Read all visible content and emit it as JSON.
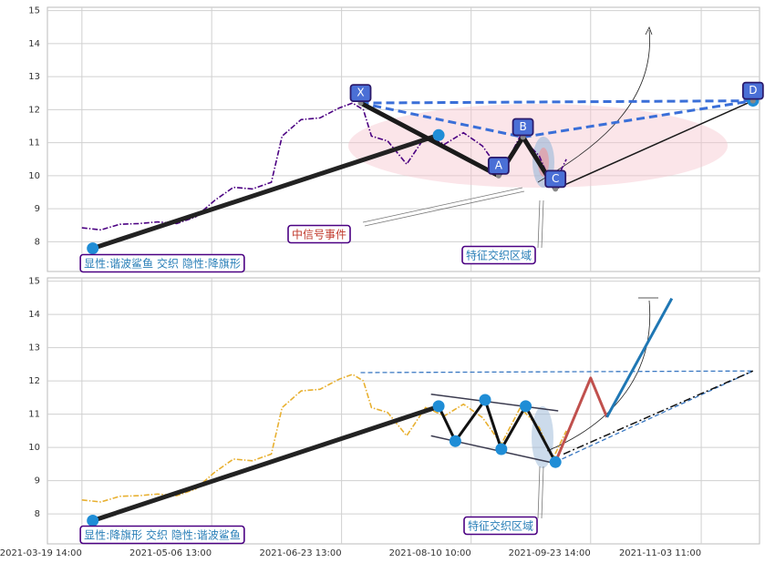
{
  "x_axis": {
    "xlim": [
      "2021-03-06 20:00",
      "2021-11-25 00:00"
    ],
    "xticks": [
      "2021-03-19 14:00",
      "2021-05-06 13:00",
      "2021-06-23 13:00",
      "2021-08-10 10:00",
      "2021-09-23 14:00",
      "2021-11-03 11:00"
    ]
  },
  "chart_data": [
    {
      "type": "line",
      "color": "#4b0082",
      "ylim": [
        7.1,
        15.1
      ],
      "yticks": [
        8,
        9,
        10,
        11,
        12,
        13,
        14,
        15
      ],
      "grid": true,
      "x": [
        "2021-03-19 14:00",
        "2021-03-26 14:00",
        "2021-04-02 14:00",
        "2021-04-09 14:00",
        "2021-04-16 14:00",
        "2021-04-23 14:00",
        "2021-04-30 14:00",
        "2021-05-07 14:00",
        "2021-05-14 14:00",
        "2021-05-21 14:00",
        "2021-05-28 14:00",
        "2021-06-01 14:00",
        "2021-06-08 14:00",
        "2021-06-15 14:00",
        "2021-06-22 14:00",
        "2021-06-27 14:00",
        "2021-07-01 14:00",
        "2021-07-04 14:00",
        "2021-07-10 14:00",
        "2021-07-17 14:00",
        "2021-07-24 14:00",
        "2021-07-31 14:00",
        "2021-08-07 14:00",
        "2021-08-14 14:00",
        "2021-08-21 14:00",
        "2021-08-28 14:00",
        "2021-09-04 14:00",
        "2021-09-09 14:00",
        "2021-09-14 14:00"
      ],
      "values": [
        8.42,
        8.36,
        8.53,
        8.55,
        8.6,
        8.55,
        8.75,
        9.25,
        9.65,
        9.6,
        9.8,
        11.2,
        11.7,
        11.75,
        12.05,
        12.2,
        12.0,
        11.2,
        11.05,
        10.35,
        11.2,
        10.95,
        11.3,
        10.9,
        10.1,
        11.2,
        10.6,
        9.65,
        10.5
      ],
      "overlays": [
        {
          "x": [
            "2021-03-23 14:00",
            "2021-07-29 10:00"
          ],
          "y": [
            7.8,
            11.23
          ],
          "color": "#222222",
          "style": "thick"
        },
        {
          "x": [
            "2021-06-30 14:00",
            "2021-08-29 14:00",
            "2021-11-22 14:00"
          ],
          "y": [
            12.2,
            11.17,
            12.27
          ],
          "color": "#3a6fd8",
          "style": "dashed"
        },
        {
          "x": [
            "2021-06-30 14:00",
            "2021-11-22 14:00"
          ],
          "y": [
            12.2,
            12.27
          ],
          "color": "#3a6fd8",
          "style": "dashed"
        },
        {
          "x": [
            "2021-06-30 14:00",
            "2021-08-20 14:00",
            "2021-08-29 14:00",
            "2021-09-10 14:00"
          ],
          "y": [
            12.2,
            10.0,
            11.17,
            9.6
          ],
          "color": "#1a1a1a",
          "style": "thick"
        },
        {
          "x": [
            "2021-09-10 14:00",
            "2021-11-22 14:00"
          ],
          "y": [
            9.6,
            12.27
          ],
          "color": "#1a1a1a",
          "style": "thin"
        }
      ],
      "markers": {
        "x": [
          "2021-03-23 14:00",
          "2021-07-29 10:00",
          "2021-11-22 14:00"
        ],
        "y": [
          7.8,
          11.23,
          12.27
        ],
        "color": "#1f8dd6"
      },
      "points": [
        {
          "label": "X",
          "x": "2021-06-30 14:00",
          "y": 12.2
        },
        {
          "label": "A",
          "x": "2021-08-20 14:00",
          "y": 10.0
        },
        {
          "label": "B",
          "x": "2021-08-29 14:00",
          "y": 11.17
        },
        {
          "label": "C",
          "x": "2021-09-10 14:00",
          "y": 9.6
        },
        {
          "label": "D",
          "x": "2021-11-22 14:00",
          "y": 12.27
        }
      ],
      "annotations": [
        "中信号事件",
        "特征交织区域",
        "显性:谐波鲨鱼 交织 隐性:降旗形"
      ]
    },
    {
      "type": "line",
      "color": "#e8b030",
      "ylim": [
        7.1,
        15.1
      ],
      "yticks": [
        8,
        9,
        10,
        11,
        12,
        13,
        14,
        15
      ],
      "grid": true,
      "x": [
        "2021-03-19 14:00",
        "2021-03-26 14:00",
        "2021-04-02 14:00",
        "2021-04-09 14:00",
        "2021-04-16 14:00",
        "2021-04-23 14:00",
        "2021-04-30 14:00",
        "2021-05-07 14:00",
        "2021-05-14 14:00",
        "2021-05-21 14:00",
        "2021-05-28 14:00",
        "2021-06-01 14:00",
        "2021-06-08 14:00",
        "2021-06-15 14:00",
        "2021-06-22 14:00",
        "2021-06-27 14:00",
        "2021-07-01 14:00",
        "2021-07-04 14:00",
        "2021-07-10 14:00",
        "2021-07-17 14:00",
        "2021-07-24 14:00",
        "2021-07-31 14:00",
        "2021-08-07 14:00",
        "2021-08-14 14:00",
        "2021-08-21 14:00",
        "2021-08-28 14:00",
        "2021-09-04 14:00",
        "2021-09-09 14:00",
        "2021-09-14 14:00"
      ],
      "values": [
        8.42,
        8.36,
        8.53,
        8.55,
        8.6,
        8.55,
        8.75,
        9.25,
        9.65,
        9.6,
        9.8,
        11.2,
        11.7,
        11.75,
        12.05,
        12.2,
        12.0,
        11.2,
        11.05,
        10.35,
        11.2,
        10.95,
        11.3,
        10.9,
        10.1,
        11.2,
        10.6,
        9.65,
        10.5
      ],
      "overlays": [
        {
          "x": [
            "2021-03-23 14:00",
            "2021-07-29 10:00"
          ],
          "y": [
            7.8,
            11.23
          ],
          "color": "#222222",
          "style": "thick"
        },
        {
          "x": [
            "2021-06-30 14:00",
            "2021-11-22 14:00"
          ],
          "y": [
            12.25,
            12.3
          ],
          "color": "#3a78c2",
          "style": "thindash"
        },
        {
          "x": [
            "2021-09-10 14:00",
            "2021-11-22 14:00"
          ],
          "y": [
            9.56,
            12.3
          ],
          "color": "#3a78c2",
          "style": "thindash"
        },
        {
          "x": [
            "2021-09-13 14:00",
            "2021-11-22 14:00"
          ],
          "y": [
            9.8,
            12.3
          ],
          "color": "#111111",
          "style": "dashdot"
        },
        {
          "x": [
            "2021-07-26 14:00",
            "2021-09-11 14:00"
          ],
          "y": [
            11.6,
            11.1
          ],
          "color": "#3b3b4f",
          "style": "thin"
        },
        {
          "x": [
            "2021-07-26 14:00",
            "2021-09-11 14:00"
          ],
          "y": [
            10.35,
            9.5
          ],
          "color": "#3b3b4f",
          "style": "thin"
        },
        {
          "x": [
            "2021-07-29 10:00",
            "2021-08-04 14:00",
            "2021-08-15 14:00",
            "2021-08-21 14:00",
            "2021-08-30 14:00",
            "2021-09-10 14:00"
          ],
          "y": [
            11.24,
            10.19,
            11.43,
            9.95,
            11.24,
            9.56
          ],
          "color": "#111111",
          "style": "medium"
        },
        {
          "x": [
            "2021-09-10 14:00",
            "2021-09-23 14:00",
            "2021-09-29 14:00"
          ],
          "y": [
            9.56,
            12.09,
            10.91
          ],
          "color": "#c0504d",
          "style": "medium"
        },
        {
          "x": [
            "2021-09-29 14:00",
            "2021-10-23 14:00"
          ],
          "y": [
            10.91,
            14.48
          ],
          "color": "#1f77b4",
          "style": "medium"
        }
      ],
      "markers": {
        "x": [
          "2021-03-23 14:00",
          "2021-07-29 10:00",
          "2021-08-04 14:00",
          "2021-08-15 14:00",
          "2021-08-21 14:00",
          "2021-08-30 14:00",
          "2021-09-10 14:00"
        ],
        "y": [
          7.8,
          11.24,
          10.19,
          11.43,
          9.95,
          11.24,
          9.56
        ],
        "color": "#1f8dd6"
      },
      "annotations": [
        "特征交织区域",
        "显性:降旗形 交织 隐性:谐波鲨鱼"
      ]
    }
  ]
}
